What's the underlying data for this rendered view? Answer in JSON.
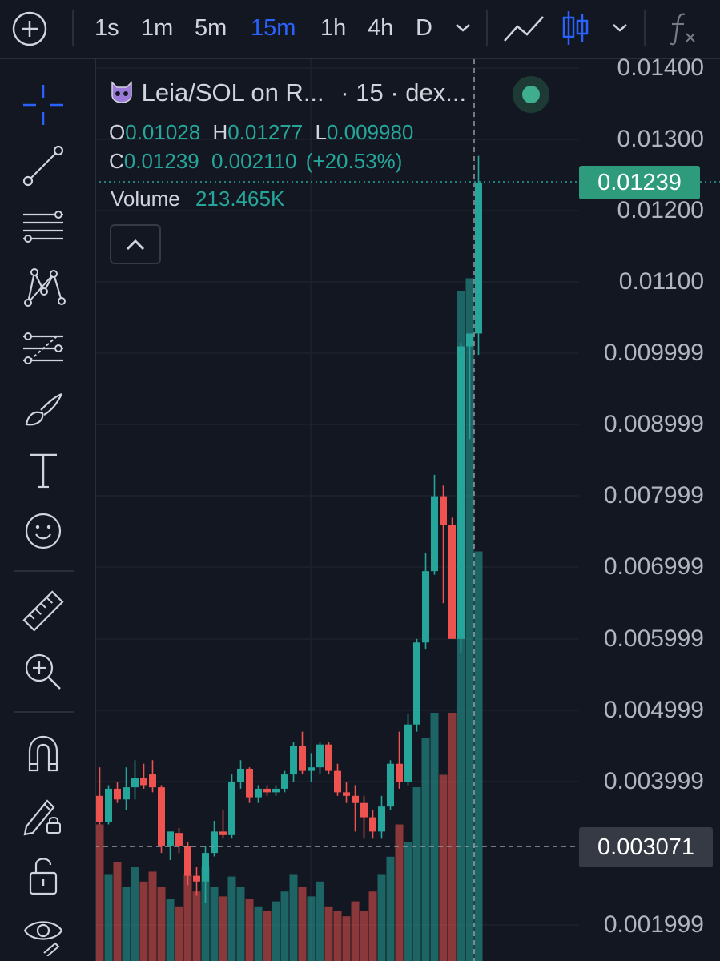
{
  "toolbar": {
    "timeframes": [
      "1s",
      "1m",
      "5m",
      "15m",
      "1h",
      "4h",
      "D"
    ],
    "active_timeframe": "15m"
  },
  "legend": {
    "symbol_text": "Leia/SOL on R...",
    "interval_text": "· 15 · dex...",
    "open_label": "O",
    "open": "0.01028",
    "high_label": "H",
    "high": "0.01277",
    "low_label": "L",
    "low": "0.009980",
    "close_label": "C",
    "close": "0.01239",
    "change": "0.002110",
    "change_pct": "(+20.53%)",
    "volume_label": "Volume",
    "volume": "213.465K"
  },
  "price_axis": {
    "labels": [
      "0.01400",
      "0.01300",
      "0.01200",
      "0.01100",
      "0.009999",
      "0.008999",
      "0.007999",
      "0.006999",
      "0.005999",
      "0.004999",
      "0.003999",
      "0.001999"
    ],
    "last_price": "0.01239",
    "crosshair_price": "0.003071"
  },
  "colors": {
    "up": "#26a69a",
    "down": "#ef5350",
    "accent": "#2962ff",
    "background": "#131722"
  }
}
